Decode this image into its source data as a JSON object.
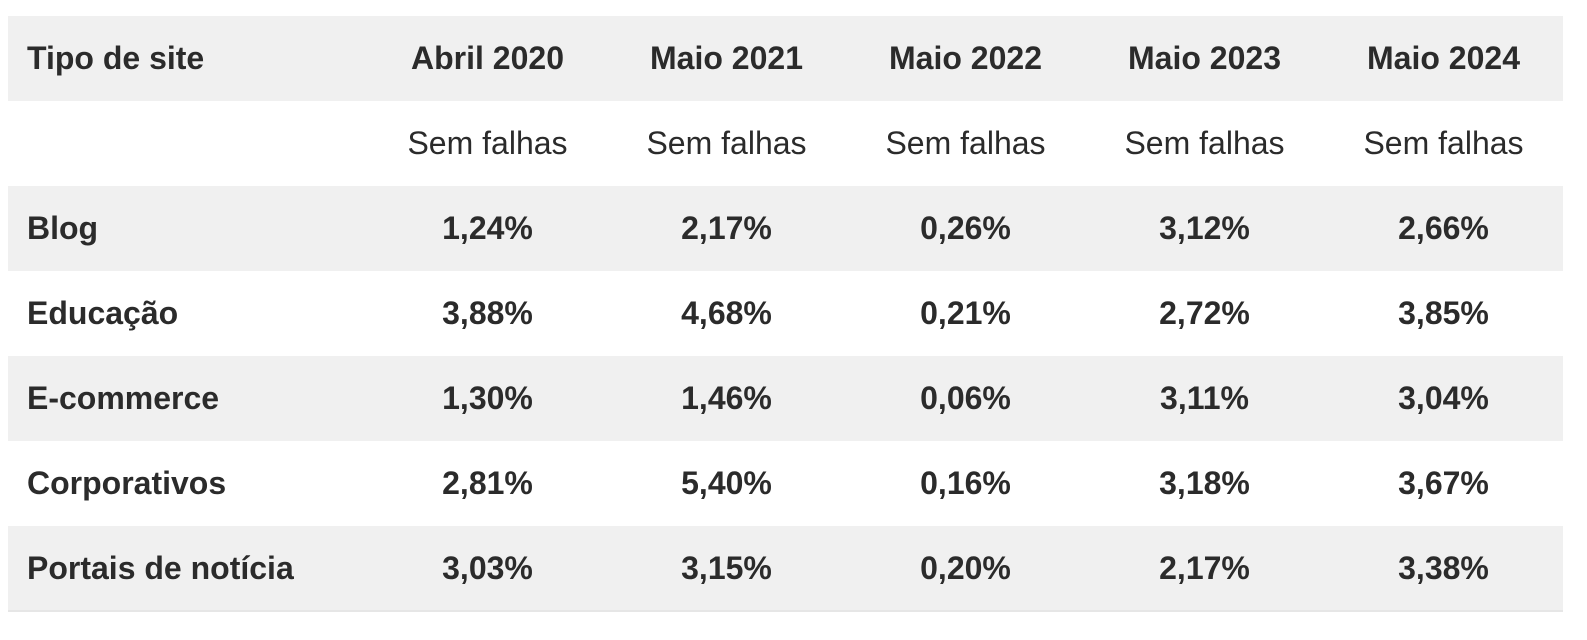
{
  "table": {
    "header": {
      "type_label": "Tipo de site",
      "columns": [
        "Abril 2020",
        "Maio 2021",
        "Maio 2022",
        "Maio 2023",
        "Maio 2024"
      ]
    },
    "subheader": {
      "label": "",
      "columns": [
        "Sem falhas",
        "Sem falhas",
        "Sem falhas",
        "Sem falhas",
        "Sem falhas"
      ]
    },
    "rows": [
      {
        "type": "Blog",
        "values": [
          "1,24%",
          "2,17%",
          "0,26%",
          "3,12%",
          "2,66%"
        ]
      },
      {
        "type": "Educação",
        "values": [
          "3,88%",
          "4,68%",
          "0,21%",
          "2,72%",
          "3,85%"
        ]
      },
      {
        "type": "E-commerce",
        "values": [
          "1,30%",
          "1,46%",
          "0,06%",
          "3,11%",
          "3,04%"
        ]
      },
      {
        "type": "Corporativos",
        "values": [
          "2,81%",
          "5,40%",
          "0,16%",
          "3,18%",
          "3,67%"
        ]
      },
      {
        "type": "Portais de notícia",
        "values": [
          "3,03%",
          "3,15%",
          "0,20%",
          "2,17%",
          "3,38%"
        ]
      }
    ]
  }
}
